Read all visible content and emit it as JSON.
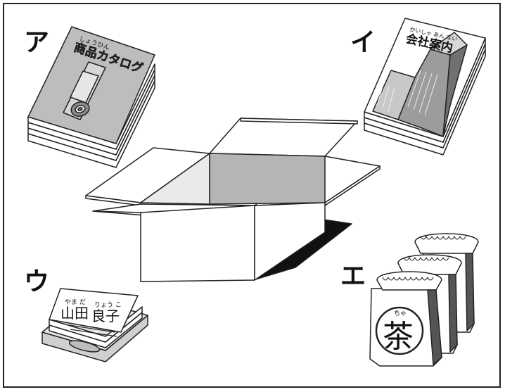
{
  "labels": {
    "a": "ア",
    "i": "イ",
    "u": "ウ",
    "e": "エ"
  },
  "catalog": {
    "ruby": "しょうひん",
    "title": "商品カタログ"
  },
  "company": {
    "ruby": "かいしゃ あん ない",
    "title": "会社案内"
  },
  "namecard": {
    "ruby_left": "やま だ",
    "ruby_right": "りょう こ",
    "name_left": "山田",
    "name_right": "良子"
  },
  "tea": {
    "ruby": "ちゃ",
    "kanji": "茶"
  },
  "colors": {
    "line": "#222222",
    "gray_light": "#d8d8d8",
    "gray_mid": "#a8a8a8",
    "gray_dark": "#6a6a6a",
    "shadow": "#111111"
  }
}
